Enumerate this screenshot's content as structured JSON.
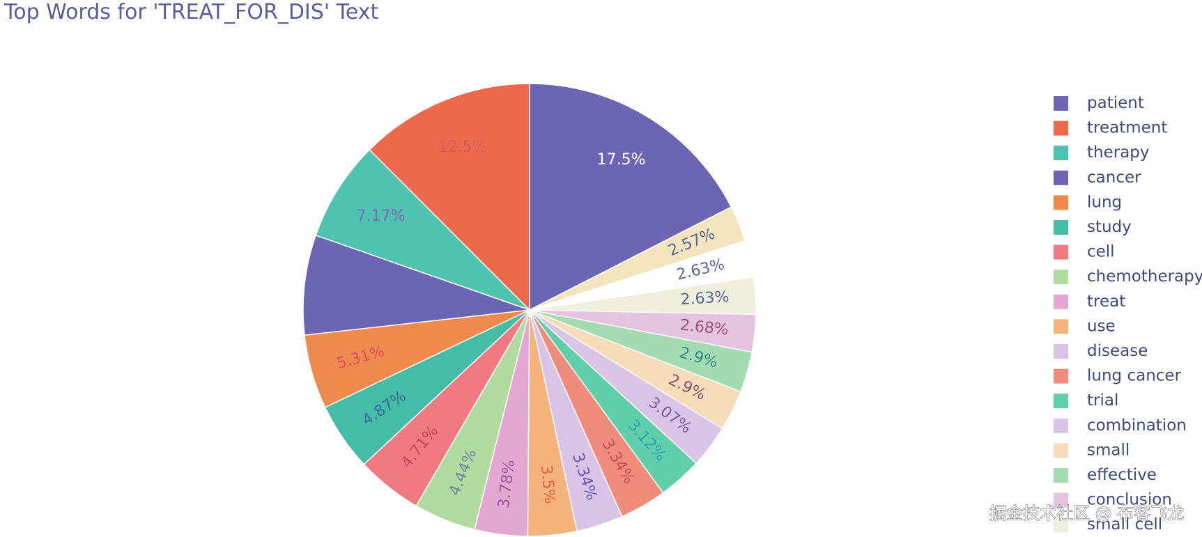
{
  "chart_data": {
    "type": "pie",
    "title": "Top Words for 'TREAT_FOR_DIS' Text",
    "direction": "clockwise",
    "slices": [
      {
        "label": "patient",
        "value": 17.5,
        "text": "17.5%",
        "color": "#6c65b4",
        "text_color": "#ffffff"
      },
      {
        "label": "small cell",
        "value": 2.57,
        "text": "2.57%",
        "color": "#f5e5bf",
        "text_color": "#5a6794"
      },
      {
        "label": "conclusion",
        "value": 2.63,
        "text": "2.63%",
        "color": "#ffffff",
        "text_color": "#5a6794"
      },
      {
        "label": "effective",
        "value": 2.63,
        "text": "2.63%",
        "color": "#eeefdc",
        "text_color": "#5a6794"
      },
      {
        "label": "small",
        "value": 2.68,
        "text": "2.68%",
        "color": "#e4c4df",
        "text_color": "#a0507a"
      },
      {
        "label": "combination",
        "value": 2.9,
        "text": "2.9%",
        "color": "#a5dbb3",
        "text_color": "#2f8a8a"
      },
      {
        "label": "trial",
        "value": 2.9,
        "text": "2.9%",
        "color": "#f6dcb8",
        "text_color": "#8a5070"
      },
      {
        "label": "lung cancer",
        "value": 3.07,
        "text": "3.07%",
        "color": "#dbc5e6",
        "text_color": "#7a5aa0"
      },
      {
        "label": "disease",
        "value": 3.12,
        "text": "3.12%",
        "color": "#5fcfa9",
        "text_color": "#2fa0b0"
      },
      {
        "label": "use",
        "value": 3.34,
        "text": "3.34%",
        "color": "#ef8c7c",
        "text_color": "#c0505a"
      },
      {
        "label": "treat",
        "value": 3.34,
        "text": "3.34%",
        "color": "#d9c3e6",
        "text_color": "#6a5ab0"
      },
      {
        "label": "chemotherapy",
        "value": 3.5,
        "text": "3.5%",
        "color": "#f4b37a",
        "text_color": "#e0604a"
      },
      {
        "label": "cell",
        "value": 3.78,
        "text": "3.78%",
        "color": "#e3a8d1",
        "text_color": "#a05a9a"
      },
      {
        "label": "study",
        "value": 4.44,
        "text": "4.44%",
        "color": "#b2db9f",
        "text_color": "#6a8a9a"
      },
      {
        "label": "lung",
        "value": 4.71,
        "text": "4.71%",
        "color": "#f07a82",
        "text_color": "#c04a50"
      },
      {
        "label": "cancer",
        "value": 4.87,
        "text": "4.87%",
        "color": "#45bca6",
        "text_color": "#3a6aa0"
      },
      {
        "label": "therapy",
        "value": 5.31,
        "text": "5.31%",
        "color": "#ef8a4e",
        "text_color": "#e0505a"
      },
      {
        "label": "treatment",
        "value": 7.13,
        "text": "",
        "color": "#6c65b4",
        "text_color": "#7a7ac8"
      },
      {
        "label": "therapy",
        "value": 7.17,
        "text": "7.17%",
        "color": "#4fc2b0",
        "text_color": "#7a6ab8"
      },
      {
        "label": "treatment",
        "value": 12.5,
        "text": "12.5%",
        "color": "#ec694b",
        "text_color": "#d2605a"
      }
    ],
    "legend": {
      "position": "right",
      "items": [
        {
          "label": "patient",
          "color": "#6c65b4"
        },
        {
          "label": "treatment",
          "color": "#ec694b"
        },
        {
          "label": "therapy",
          "color": "#4fc2b0"
        },
        {
          "label": "cancer",
          "color": "#6c65b4"
        },
        {
          "label": "lung",
          "color": "#ef8a4e"
        },
        {
          "label": "study",
          "color": "#45bca6"
        },
        {
          "label": "cell",
          "color": "#f07a82"
        },
        {
          "label": "chemotherapy",
          "color": "#b2db9f"
        },
        {
          "label": "treat",
          "color": "#e3a8d1"
        },
        {
          "label": "use",
          "color": "#f4b37a"
        },
        {
          "label": "disease",
          "color": "#d9c3e6"
        },
        {
          "label": "lung cancer",
          "color": "#ef8c7c"
        },
        {
          "label": "trial",
          "color": "#5fcfa9"
        },
        {
          "label": "combination",
          "color": "#dbc5e6"
        },
        {
          "label": "small",
          "color": "#f6dcb8"
        },
        {
          "label": "effective",
          "color": "#a5dbb3"
        },
        {
          "label": "conclusion",
          "color": "#e4c4df"
        },
        {
          "label": "small cell",
          "color": "#eeefdc"
        }
      ]
    }
  },
  "watermark": "掘金技术社区 @ 布客飞龙"
}
